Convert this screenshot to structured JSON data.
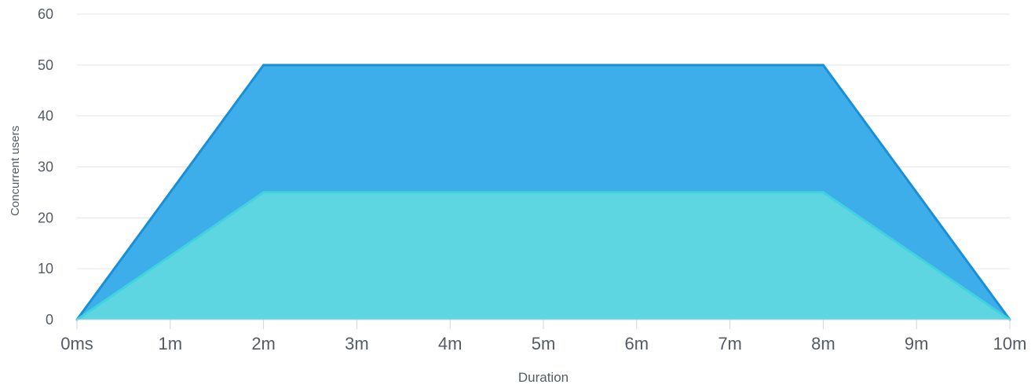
{
  "chart_data": {
    "type": "area",
    "title": "",
    "xlabel": "Duration",
    "ylabel": "Concurrent users",
    "x_unit": "minutes",
    "xlim": [
      0,
      10
    ],
    "ylim": [
      0,
      60
    ],
    "x_ticks": [
      0,
      1,
      2,
      3,
      4,
      5,
      6,
      7,
      8,
      9,
      10
    ],
    "x_tick_labels": [
      "0ms",
      "1m",
      "2m",
      "3m",
      "4m",
      "5m",
      "6m",
      "7m",
      "8m",
      "9m",
      "10m"
    ],
    "y_ticks": [
      0,
      10,
      20,
      30,
      40,
      50,
      60
    ],
    "y_tick_labels": [
      "0",
      "10",
      "20",
      "30",
      "40",
      "50",
      "60"
    ],
    "grid": true,
    "legend": "none",
    "series": [
      {
        "color": "#3daee9",
        "line_color": "#1a8fd6",
        "points": [
          {
            "x": 0,
            "y": 0
          },
          {
            "x": 2,
            "y": 50
          },
          {
            "x": 8,
            "y": 50
          },
          {
            "x": 10,
            "y": 0
          }
        ]
      },
      {
        "color": "#5dd6e2",
        "line_color": "#3fd2df",
        "points": [
          {
            "x": 0,
            "y": 0
          },
          {
            "x": 2,
            "y": 25
          },
          {
            "x": 8,
            "y": 25
          },
          {
            "x": 10,
            "y": 0
          }
        ]
      }
    ]
  }
}
